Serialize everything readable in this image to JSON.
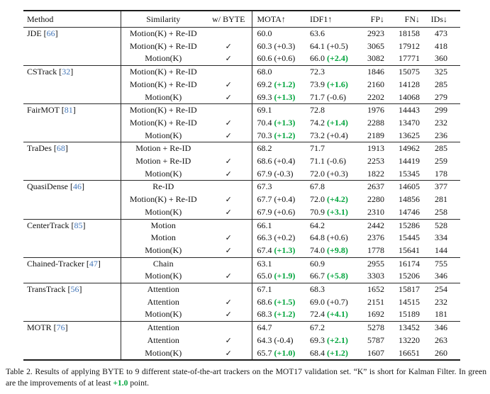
{
  "colors": {
    "improvement_green": "#00a43c",
    "citation_blue": "#4376b8"
  },
  "table": {
    "check_glyph": "✓",
    "columns": [
      {
        "key": "method",
        "label": "Method"
      },
      {
        "key": "similarity",
        "label": "Similarity"
      },
      {
        "key": "byte",
        "label": "w/ BYTE"
      },
      {
        "key": "mota",
        "label": "MOTA↑"
      },
      {
        "key": "idf1",
        "label": "IDF1↑"
      },
      {
        "key": "fp",
        "label": "FP↓"
      },
      {
        "key": "fn",
        "label": "FN↓"
      },
      {
        "key": "ids",
        "label": "IDs↓"
      }
    ],
    "groups": [
      {
        "method": "JDE",
        "citation": "66",
        "rows": [
          {
            "similarity": "Motion(K) + Re-ID",
            "byte": false,
            "mota": "60.0",
            "mota_delta": null,
            "mota_green": false,
            "idf1": "63.6",
            "idf1_delta": null,
            "idf1_green": false,
            "fp": "2923",
            "fn": "18158",
            "ids": "473"
          },
          {
            "similarity": "Motion(K) + Re-ID",
            "byte": true,
            "mota": "60.3",
            "mota_delta": "+0.3",
            "mota_green": false,
            "idf1": "64.1",
            "idf1_delta": "+0.5",
            "idf1_green": false,
            "fp": "3065",
            "fn": "17912",
            "ids": "418"
          },
          {
            "similarity": "Motion(K)",
            "byte": true,
            "mota": "60.6",
            "mota_delta": "+0.6",
            "mota_green": false,
            "idf1": "66.0",
            "idf1_delta": "+2.4",
            "idf1_green": true,
            "fp": "3082",
            "fn": "17771",
            "ids": "360"
          }
        ]
      },
      {
        "method": "CSTrack",
        "citation": "32",
        "rows": [
          {
            "similarity": "Motion(K) + Re-ID",
            "byte": false,
            "mota": "68.0",
            "mota_delta": null,
            "mota_green": false,
            "idf1": "72.3",
            "idf1_delta": null,
            "idf1_green": false,
            "fp": "1846",
            "fn": "15075",
            "ids": "325"
          },
          {
            "similarity": "Motion(K) + Re-ID",
            "byte": true,
            "mota": "69.2",
            "mota_delta": "+1.2",
            "mota_green": true,
            "idf1": "73.9",
            "idf1_delta": "+1.6",
            "idf1_green": true,
            "fp": "2160",
            "fn": "14128",
            "ids": "285"
          },
          {
            "similarity": "Motion(K)",
            "byte": true,
            "mota": "69.3",
            "mota_delta": "+1.3",
            "mota_green": true,
            "idf1": "71.7",
            "idf1_delta": "-0.6",
            "idf1_green": false,
            "fp": "2202",
            "fn": "14068",
            "ids": "279"
          }
        ]
      },
      {
        "method": "FairMOT",
        "citation": "81",
        "rows": [
          {
            "similarity": "Motion(K) + Re-ID",
            "byte": false,
            "mota": "69.1",
            "mota_delta": null,
            "mota_green": false,
            "idf1": "72.8",
            "idf1_delta": null,
            "idf1_green": false,
            "fp": "1976",
            "fn": "14443",
            "ids": "299"
          },
          {
            "similarity": "Motion(K) + Re-ID",
            "byte": true,
            "mota": "70.4",
            "mota_delta": "+1.3",
            "mota_green": true,
            "idf1": "74.2",
            "idf1_delta": "+1.4",
            "idf1_green": true,
            "fp": "2288",
            "fn": "13470",
            "ids": "232"
          },
          {
            "similarity": "Motion(K)",
            "byte": true,
            "mota": "70.3",
            "mota_delta": "+1.2",
            "mota_green": true,
            "idf1": "73.2",
            "idf1_delta": "+0.4",
            "idf1_green": false,
            "fp": "2189",
            "fn": "13625",
            "ids": "236"
          }
        ]
      },
      {
        "method": "TraDes",
        "citation": "68",
        "rows": [
          {
            "similarity": "Motion + Re-ID",
            "byte": false,
            "mota": "68.2",
            "mota_delta": null,
            "mota_green": false,
            "idf1": "71.7",
            "idf1_delta": null,
            "idf1_green": false,
            "fp": "1913",
            "fn": "14962",
            "ids": "285"
          },
          {
            "similarity": "Motion + Re-ID",
            "byte": true,
            "mota": "68.6",
            "mota_delta": "+0.4",
            "mota_green": false,
            "idf1": "71.1",
            "idf1_delta": "-0.6",
            "idf1_green": false,
            "fp": "2253",
            "fn": "14419",
            "ids": "259"
          },
          {
            "similarity": "Motion(K)",
            "byte": true,
            "mota": "67.9",
            "mota_delta": "-0.3",
            "mota_green": false,
            "idf1": "72.0",
            "idf1_delta": "+0.3",
            "idf1_green": false,
            "fp": "1822",
            "fn": "15345",
            "ids": "178"
          }
        ]
      },
      {
        "method": "QuasiDense",
        "citation": "46",
        "rows": [
          {
            "similarity": "Re-ID",
            "byte": false,
            "mota": "67.3",
            "mota_delta": null,
            "mota_green": false,
            "idf1": "67.8",
            "idf1_delta": null,
            "idf1_green": false,
            "fp": "2637",
            "fn": "14605",
            "ids": "377"
          },
          {
            "similarity": "Motion(K) + Re-ID",
            "byte": true,
            "mota": "67.7",
            "mota_delta": "+0.4",
            "mota_green": false,
            "idf1": "72.0",
            "idf1_delta": "+4.2",
            "idf1_green": true,
            "fp": "2280",
            "fn": "14856",
            "ids": "281"
          },
          {
            "similarity": "Motion(K)",
            "byte": true,
            "mota": "67.9",
            "mota_delta": "+0.6",
            "mota_green": false,
            "idf1": "70.9",
            "idf1_delta": "+3.1",
            "idf1_green": true,
            "fp": "2310",
            "fn": "14746",
            "ids": "258"
          }
        ]
      },
      {
        "method": "CenterTrack",
        "citation": "85",
        "rows": [
          {
            "similarity": "Motion",
            "byte": false,
            "mota": "66.1",
            "mota_delta": null,
            "mota_green": false,
            "idf1": "64.2",
            "idf1_delta": null,
            "idf1_green": false,
            "fp": "2442",
            "fn": "15286",
            "ids": "528"
          },
          {
            "similarity": "Motion",
            "byte": true,
            "mota": "66.3",
            "mota_delta": "+0.2",
            "mota_green": false,
            "idf1": "64.8",
            "idf1_delta": "+0.6",
            "idf1_green": false,
            "fp": "2376",
            "fn": "15445",
            "ids": "334"
          },
          {
            "similarity": "Motion(K)",
            "byte": true,
            "mota": "67.4",
            "mota_delta": "+1.3",
            "mota_green": true,
            "idf1": "74.0",
            "idf1_delta": "+9.8",
            "idf1_green": true,
            "fp": "1778",
            "fn": "15641",
            "ids": "144"
          }
        ]
      },
      {
        "method": "Chained-Tracker",
        "citation": "47",
        "rows": [
          {
            "similarity": "Chain",
            "byte": false,
            "mota": "63.1",
            "mota_delta": null,
            "mota_green": false,
            "idf1": "60.9",
            "idf1_delta": null,
            "idf1_green": false,
            "fp": "2955",
            "fn": "16174",
            "ids": "755"
          },
          {
            "similarity": "Motion(K)",
            "byte": true,
            "mota": "65.0",
            "mota_delta": "+1.9",
            "mota_green": true,
            "idf1": "66.7",
            "idf1_delta": "+5.8",
            "idf1_green": true,
            "fp": "3303",
            "fn": "15206",
            "ids": "346"
          }
        ]
      },
      {
        "method": "TransTrack",
        "citation": "56",
        "rows": [
          {
            "similarity": "Attention",
            "byte": false,
            "mota": "67.1",
            "mota_delta": null,
            "mota_green": false,
            "idf1": "68.3",
            "idf1_delta": null,
            "idf1_green": false,
            "fp": "1652",
            "fn": "15817",
            "ids": "254"
          },
          {
            "similarity": "Attention",
            "byte": true,
            "mota": "68.6",
            "mota_delta": "+1.5",
            "mota_green": true,
            "idf1": "69.0",
            "idf1_delta": "+0.7",
            "idf1_green": false,
            "fp": "2151",
            "fn": "14515",
            "ids": "232"
          },
          {
            "similarity": "Motion(K)",
            "byte": true,
            "mota": "68.3",
            "mota_delta": "+1.2",
            "mota_green": true,
            "idf1": "72.4",
            "idf1_delta": "+4.1",
            "idf1_green": true,
            "fp": "1692",
            "fn": "15189",
            "ids": "181"
          }
        ]
      },
      {
        "method": "MOTR",
        "citation": "76",
        "rows": [
          {
            "similarity": "Attention",
            "byte": false,
            "mota": "64.7",
            "mota_delta": null,
            "mota_green": false,
            "idf1": "67.2",
            "idf1_delta": null,
            "idf1_green": false,
            "fp": "5278",
            "fn": "13452",
            "ids": "346"
          },
          {
            "similarity": "Attention",
            "byte": true,
            "mota": "64.3",
            "mota_delta": "-0.4",
            "mota_green": false,
            "idf1": "69.3",
            "idf1_delta": "+2.1",
            "idf1_green": true,
            "fp": "5787",
            "fn": "13220",
            "ids": "263"
          },
          {
            "similarity": "Motion(K)",
            "byte": true,
            "mota": "65.7",
            "mota_delta": "+1.0",
            "mota_green": true,
            "idf1": "68.4",
            "idf1_delta": "+1.2",
            "idf1_green": true,
            "fp": "1607",
            "fn": "16651",
            "ids": "260"
          }
        ]
      }
    ]
  },
  "caption": {
    "text_before_green": "Table 2. Results of applying BYTE to 9 different state-of-the-art trackers on the MOT17 validation set. “K” is short for Kalman Filter. In green are the improvements of at least ",
    "green_text": "+1.0",
    "text_after_green": " point."
  }
}
